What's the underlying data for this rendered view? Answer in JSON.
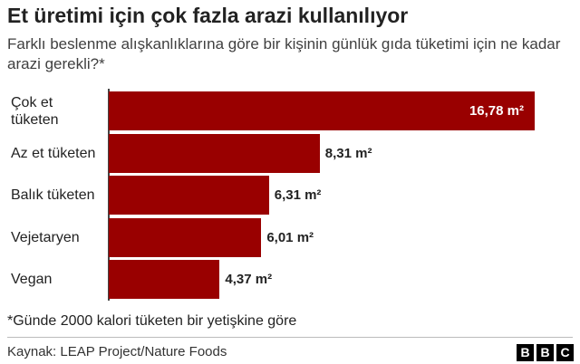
{
  "chart_data": {
    "type": "bar",
    "orientation": "horizontal",
    "title": "Et üretimi için çok fazla arazi kullanılıyor",
    "subtitle": "Farklı beslenme alışkanlıklarına göre bir kişinin günlük gıda tüketimi için ne kadar arazi gerekli?*",
    "categories": [
      "Çok et tüketen",
      "Az et tüketen",
      "Balık tüketen",
      "Vejetaryen",
      "Vegan"
    ],
    "values": [
      16.78,
      8.31,
      6.31,
      6.01,
      4.37
    ],
    "value_labels": [
      "16,78 m²",
      "8,31 m²",
      "6,31 m²",
      "6,01 m²",
      "4,37 m²"
    ],
    "color": "#990000",
    "footnote": "*Günde 2000 kalori tüketen bir yetişkine göre",
    "source": "Kaynak: LEAP Project/Nature Foods",
    "logo": [
      "B",
      "B",
      "C"
    ]
  }
}
